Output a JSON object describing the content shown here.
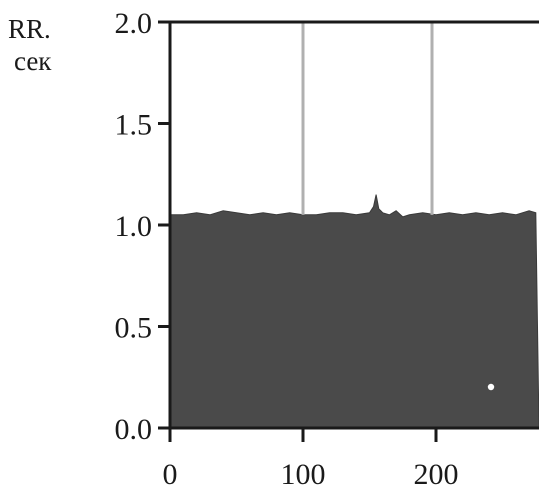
{
  "chart_data": {
    "type": "area",
    "ylabel_line1": "RR.",
    "ylabel_line2": "сек",
    "xlabel": "",
    "title": "",
    "xlim": [
      0,
      275
    ],
    "ylim": [
      0,
      2.0
    ],
    "x_ticks": [
      0,
      100,
      200
    ],
    "x_tick_labels": [
      "0",
      "100",
      "200"
    ],
    "y_ticks": [
      0.0,
      0.5,
      1.0,
      1.5,
      2.0
    ],
    "y_tick_labels": [
      "0.0",
      "0.5",
      "1.0",
      "1.5",
      "2.0"
    ],
    "vertical_markers": [
      100,
      197
    ],
    "grid": false,
    "series": [
      {
        "fill_color": "#4a4a4a",
        "x": [
          0,
          10,
          20,
          30,
          40,
          50,
          60,
          70,
          80,
          90,
          100,
          110,
          120,
          130,
          140,
          150,
          153,
          155,
          157,
          160,
          165,
          170,
          175,
          180,
          190,
          200,
          210,
          220,
          230,
          240,
          250,
          260,
          270,
          275
        ],
        "y": [
          1.05,
          1.05,
          1.06,
          1.05,
          1.07,
          1.06,
          1.05,
          1.06,
          1.05,
          1.06,
          1.05,
          1.05,
          1.06,
          1.06,
          1.05,
          1.06,
          1.09,
          1.15,
          1.08,
          1.06,
          1.05,
          1.07,
          1.04,
          1.05,
          1.06,
          1.05,
          1.06,
          1.05,
          1.06,
          1.05,
          1.06,
          1.05,
          1.07,
          1.06
        ]
      }
    ],
    "colors": {
      "axis": "#1a1a1a",
      "marker_line": "#b0b0b0",
      "fill": "#4a4a4a"
    }
  }
}
